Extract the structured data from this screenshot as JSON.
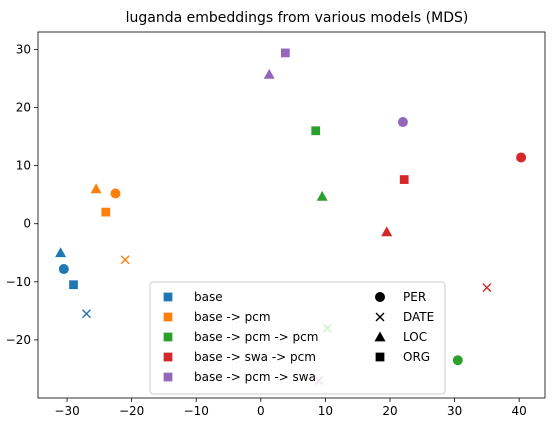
{
  "chart_data": {
    "type": "scatter",
    "title": "luganda embeddings from various models (MDS)",
    "xlabel": "",
    "ylabel": "",
    "xlim": [
      -34.5,
      44.0
    ],
    "ylim": [
      -30.0,
      33.0
    ],
    "xticks": [
      -30,
      -20,
      -10,
      0,
      10,
      20,
      30,
      40
    ],
    "yticks": [
      -20,
      -10,
      0,
      10,
      20,
      30
    ],
    "grid": false,
    "series": [
      {
        "name": "base",
        "color": "#1f77b4",
        "points": [
          {
            "label": "PER",
            "x": -30.5,
            "y": -7.8
          },
          {
            "label": "DATE",
            "x": -27.0,
            "y": -15.5
          },
          {
            "label": "LOC",
            "x": -31.0,
            "y": -5.0
          },
          {
            "label": "ORG",
            "x": -29.0,
            "y": -10.5
          }
        ]
      },
      {
        "name": "base -> pcm",
        "color": "#ff7f0e",
        "points": [
          {
            "label": "PER",
            "x": -22.5,
            "y": 5.2
          },
          {
            "label": "DATE",
            "x": -21.0,
            "y": -6.2
          },
          {
            "label": "LOC",
            "x": -25.5,
            "y": 6.0
          },
          {
            "label": "ORG",
            "x": -24.0,
            "y": 2.0
          }
        ]
      },
      {
        "name": "base -> pcm -> pcm",
        "color": "#2ca02c",
        "points": [
          {
            "label": "PER",
            "x": 30.5,
            "y": -23.5
          },
          {
            "label": "DATE",
            "x": 10.3,
            "y": -18.0
          },
          {
            "label": "LOC",
            "x": 9.5,
            "y": 4.7
          },
          {
            "label": "ORG",
            "x": 8.5,
            "y": 16.0
          }
        ]
      },
      {
        "name": "base -> swa -> pcm",
        "color": "#d62728",
        "points": [
          {
            "label": "PER",
            "x": 40.3,
            "y": 11.4
          },
          {
            "label": "DATE",
            "x": 35.0,
            "y": -11.0
          },
          {
            "label": "LOC",
            "x": 19.5,
            "y": -1.4
          },
          {
            "label": "ORG",
            "x": 22.2,
            "y": 7.6
          }
        ]
      },
      {
        "name": "base -> pcm -> swa",
        "color": "#9467bd",
        "points": [
          {
            "label": "PER",
            "x": 22.0,
            "y": 17.5
          },
          {
            "label": "DATE",
            "x": 9.0,
            "y": -27.0
          },
          {
            "label": "LOC",
            "x": 1.3,
            "y": 25.7
          },
          {
            "label": "ORG",
            "x": 3.8,
            "y": 29.4
          }
        ]
      }
    ],
    "legend": {
      "placement": "lower-center",
      "models": [
        "base",
        "base -> pcm",
        "base -> pcm -> pcm",
        "base -> swa -> pcm",
        "base -> pcm -> swa"
      ],
      "entities": [
        {
          "label": "PER",
          "marker": "circle"
        },
        {
          "label": "DATE",
          "marker": "x"
        },
        {
          "label": "LOC",
          "marker": "triangle"
        },
        {
          "label": "ORG",
          "marker": "square"
        }
      ]
    }
  }
}
